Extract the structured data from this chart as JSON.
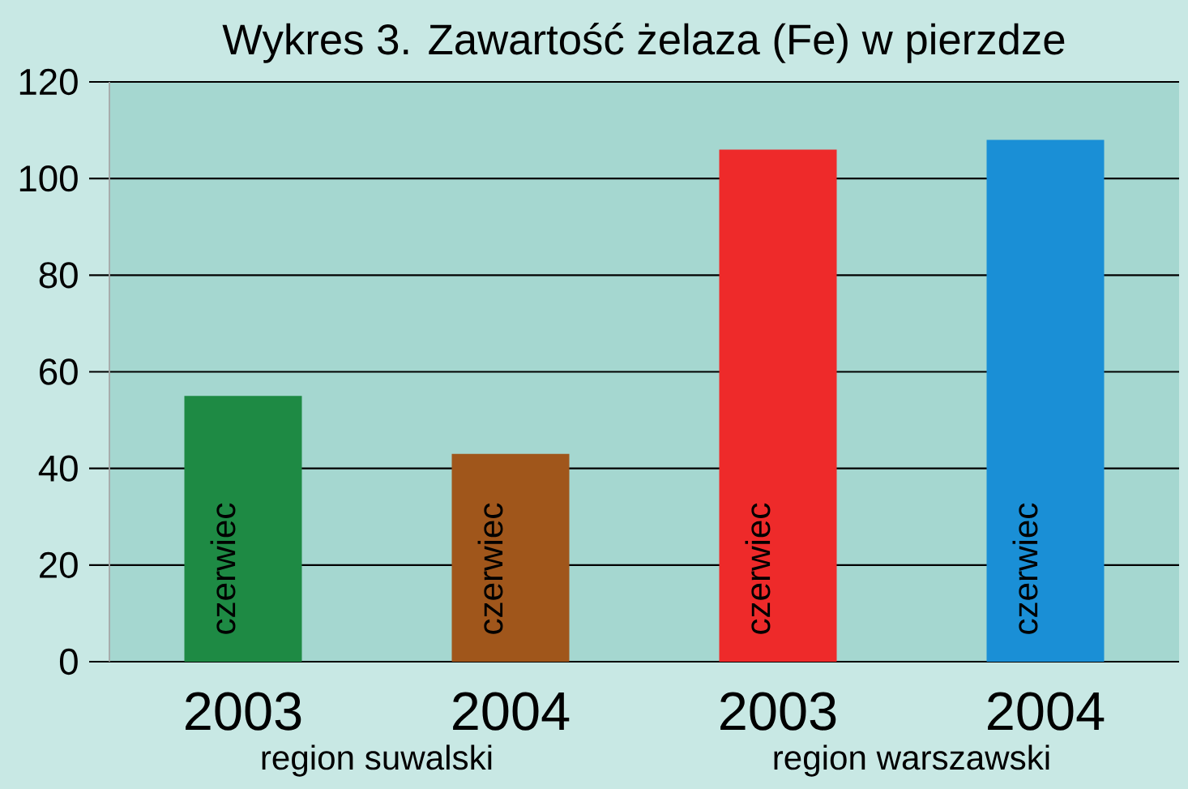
{
  "chart_data": {
    "type": "bar",
    "title": "Wykres 3. Zawartość żelaza (Fe) w pierzdze",
    "categories": [
      "2003",
      "2004",
      "2003",
      "2004"
    ],
    "values": [
      55,
      43,
      106,
      108
    ],
    "colors": [
      "#1e8a44",
      "#a0561b",
      "#ee2a2a",
      "#1a8fd6"
    ],
    "ylim": [
      0,
      120
    ],
    "yticks": [
      0,
      20,
      40,
      60,
      80,
      100,
      120
    ],
    "grid": "y",
    "annotations": [
      "czerwiec",
      "czerwiec",
      "czerwiec",
      "czerwiec",
      "region suwalski",
      "region warszawski"
    ]
  }
}
